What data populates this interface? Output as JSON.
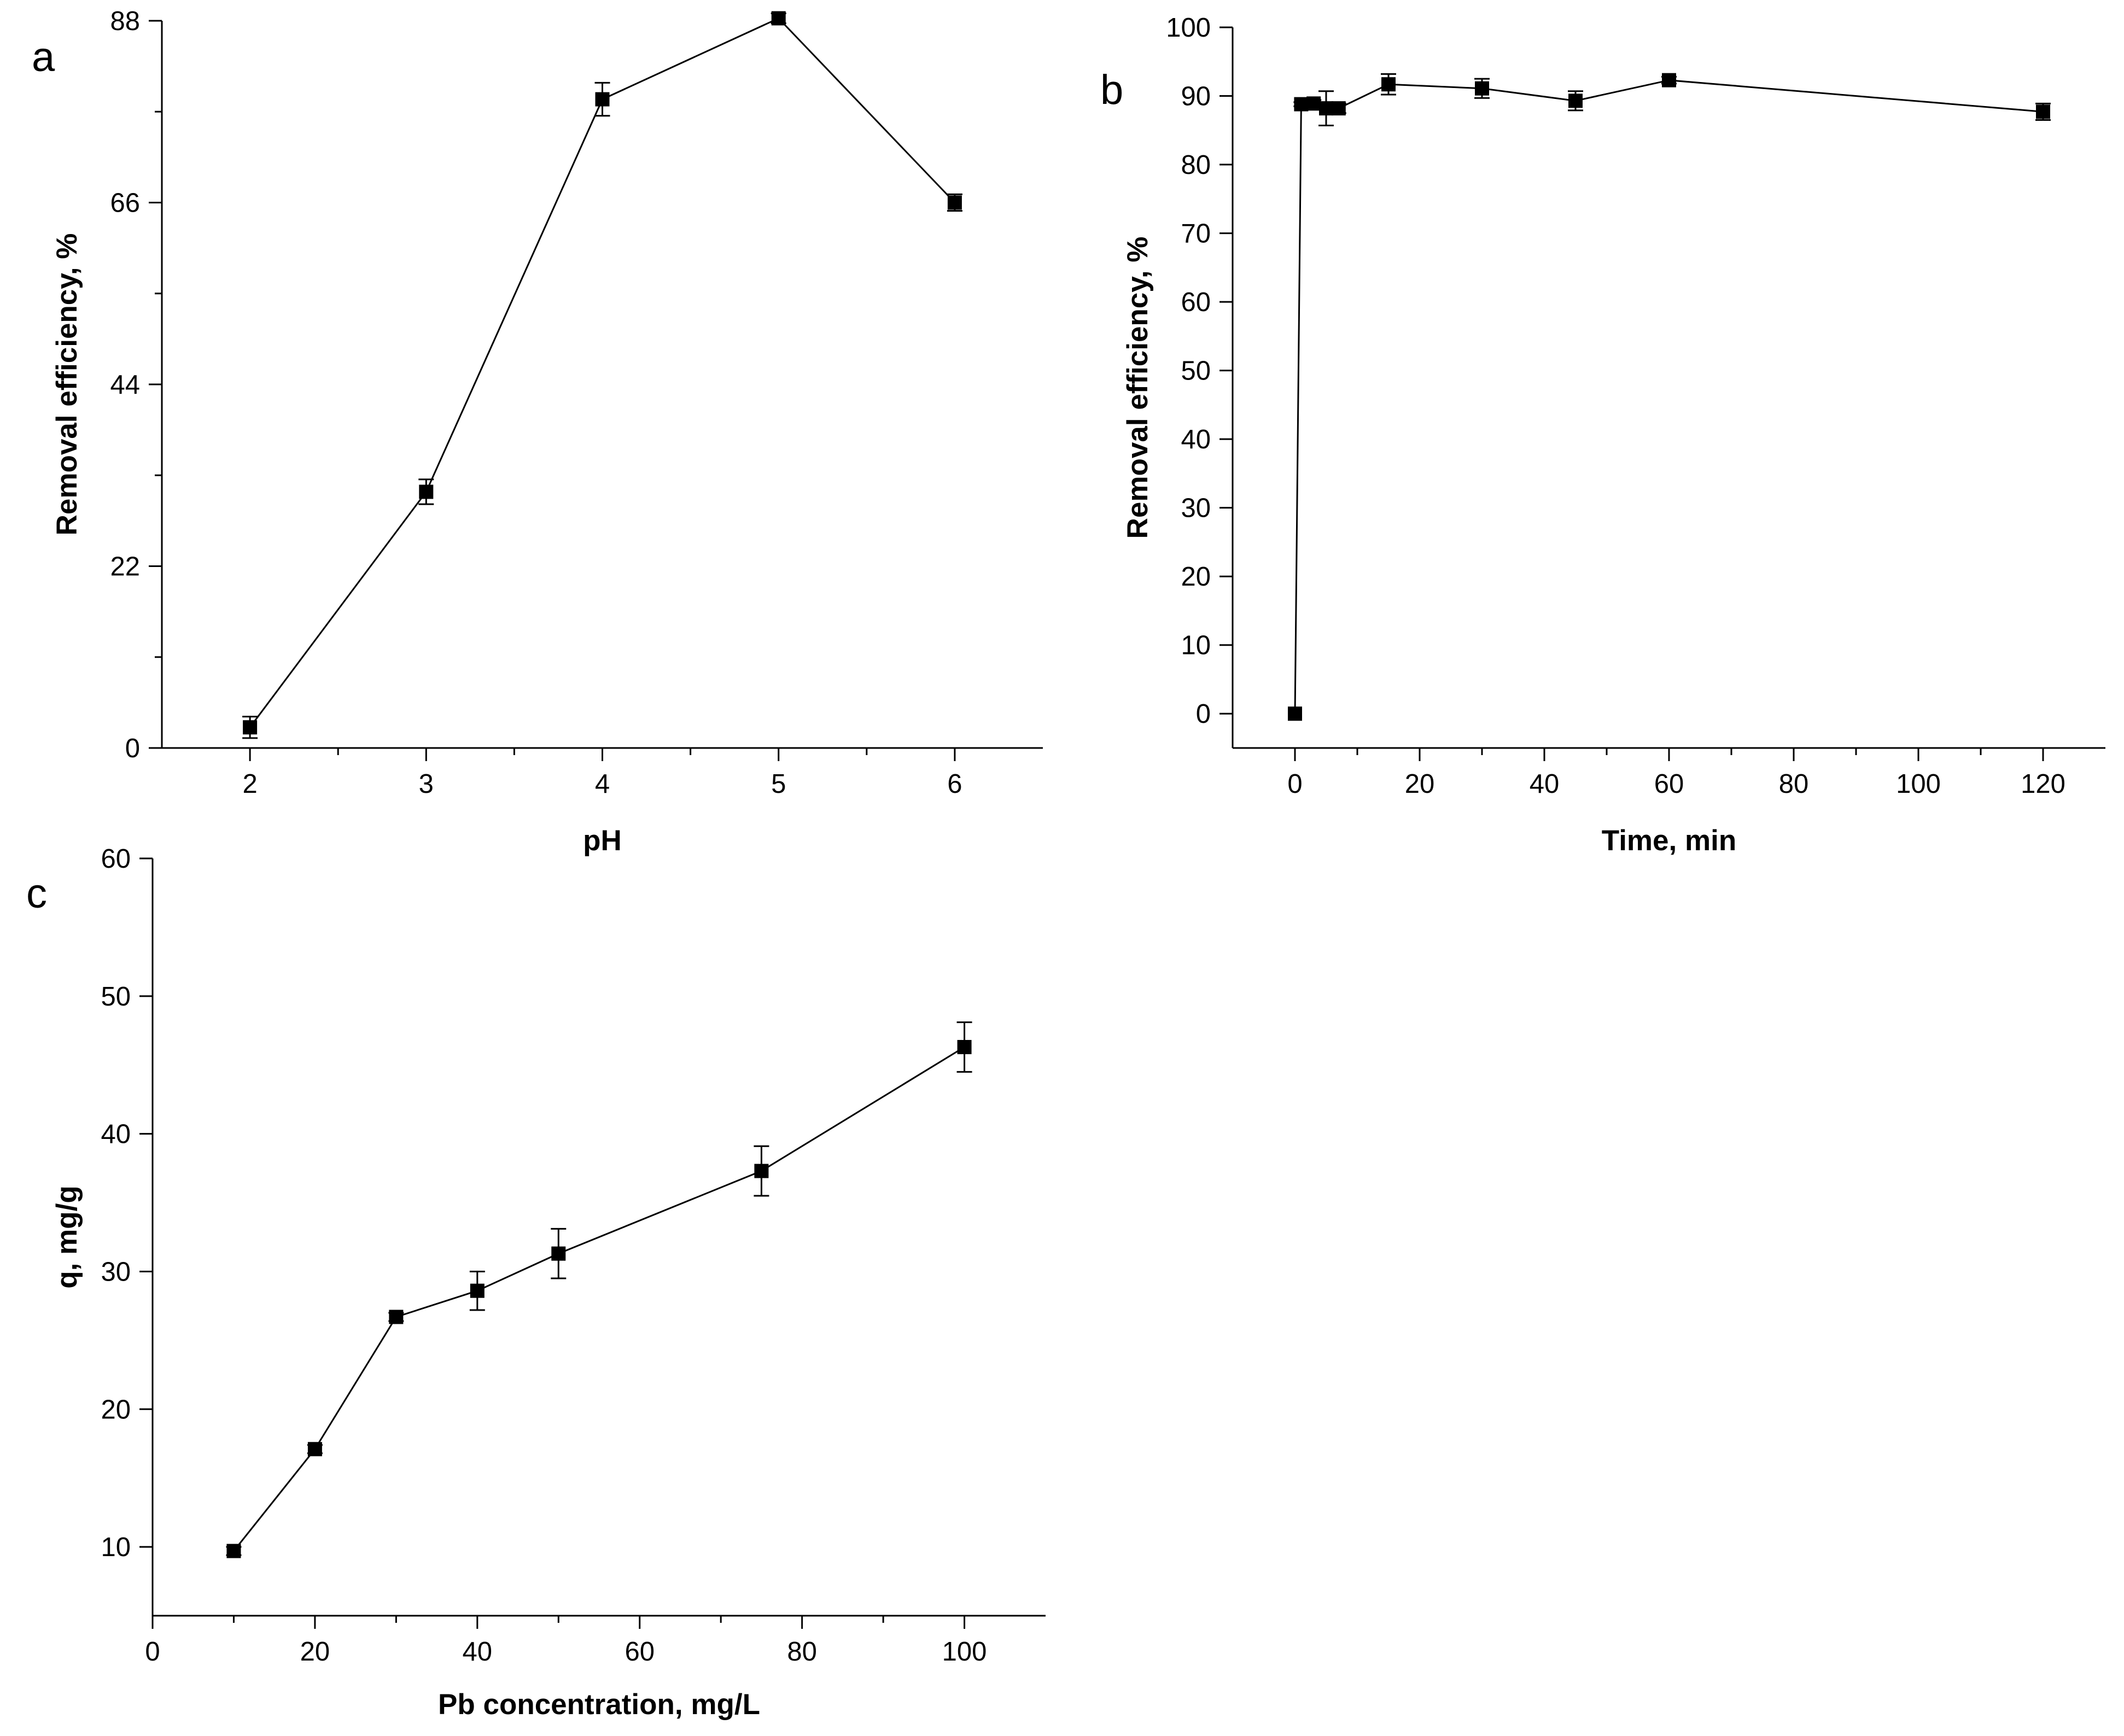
{
  "chart_data": [
    {
      "panel": "a",
      "type": "line",
      "title": "",
      "xlabel": "pH",
      "ylabel": "Removal efficiency, %",
      "xlim": [
        1.5,
        6.5
      ],
      "ylim": [
        0,
        88
      ],
      "xticks": [
        2,
        3,
        4,
        5,
        6
      ],
      "yticks": [
        0,
        22,
        44,
        66,
        88
      ],
      "series": [
        {
          "name": "Removal efficiency",
          "x": [
            2,
            3,
            4,
            5,
            6
          ],
          "y": [
            2.5,
            31,
            78.5,
            88.3,
            66
          ],
          "err": [
            1.3,
            1.5,
            2.0,
            0.6,
            1.0
          ]
        }
      ]
    },
    {
      "panel": "b",
      "type": "line",
      "title": "",
      "xlabel": "Time, min",
      "ylabel": "Removal efficiency, %",
      "xlim": [
        -10,
        130
      ],
      "ylim": [
        -5,
        100
      ],
      "xticks": [
        0,
        20,
        40,
        60,
        80,
        100,
        120
      ],
      "yticks": [
        0,
        10,
        20,
        30,
        40,
        50,
        60,
        70,
        80,
        90,
        100
      ],
      "series": [
        {
          "name": "Removal efficiency",
          "x": [
            0,
            1,
            3,
            5,
            7,
            15,
            30,
            45,
            60,
            120
          ],
          "y": [
            0,
            88.8,
            88.9,
            88.2,
            88.2,
            91.7,
            91.1,
            89.3,
            92.3,
            87.7
          ],
          "err": [
            0,
            0.3,
            0.5,
            2.5,
            0.7,
            1.5,
            1.4,
            1.4,
            0.5,
            1.2
          ]
        }
      ]
    },
    {
      "panel": "c",
      "type": "line",
      "title": "",
      "xlabel": "Pb concentration, mg/L",
      "ylabel": "q, mg/g",
      "xlim": [
        0,
        110
      ],
      "ylim": [
        5,
        60
      ],
      "xticks": [
        0,
        20,
        40,
        60,
        80,
        100
      ],
      "yticks": [
        10,
        20,
        30,
        40,
        50,
        60
      ],
      "series": [
        {
          "name": "q",
          "x": [
            10,
            20,
            30,
            40,
            50,
            75,
            100
          ],
          "y": [
            9.7,
            17.1,
            26.7,
            28.6,
            31.3,
            37.3,
            46.3
          ],
          "err": [
            0.3,
            0.3,
            0.3,
            1.4,
            1.8,
            1.8,
            1.8
          ]
        }
      ]
    }
  ]
}
